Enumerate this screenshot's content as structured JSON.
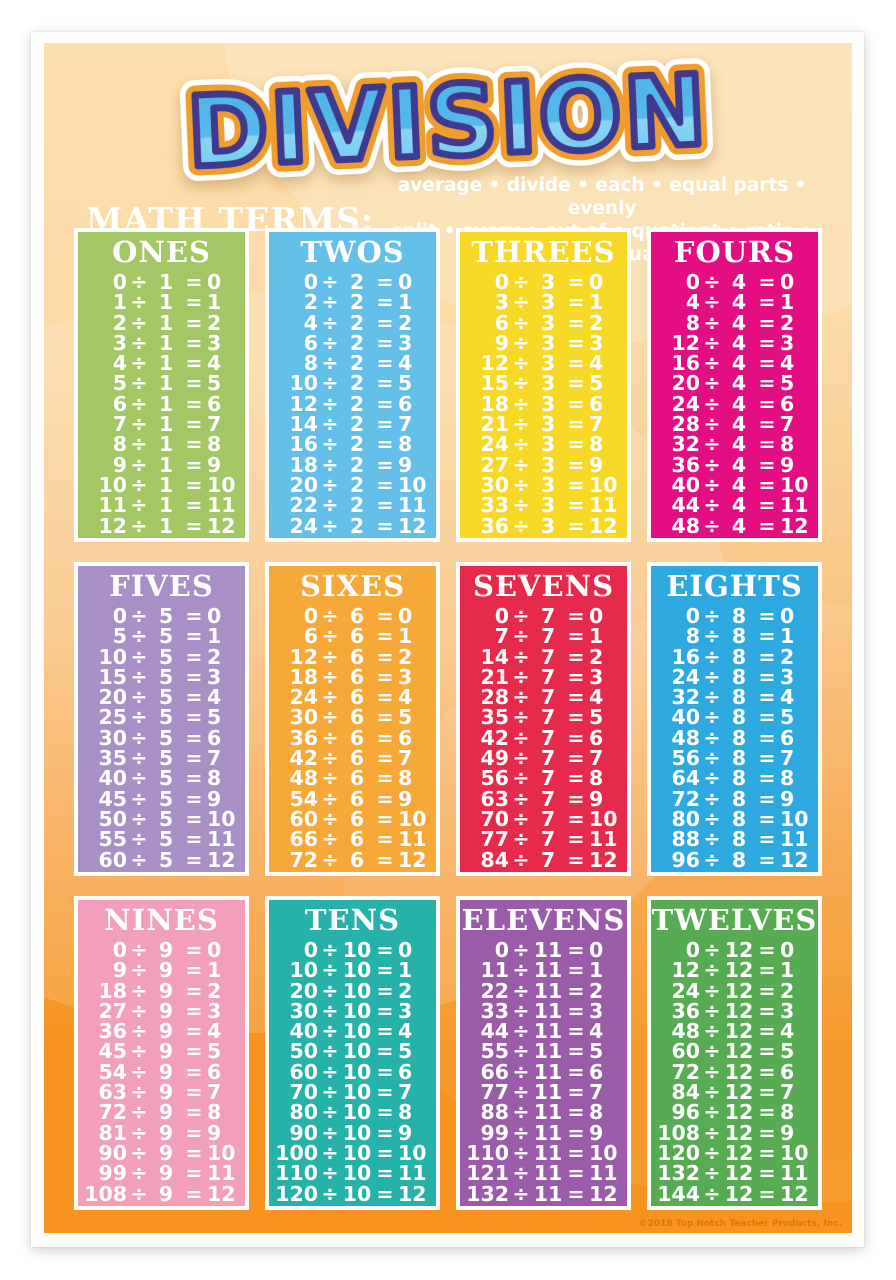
{
  "poster": {
    "title": "DIVISION",
    "math_terms_label": "MATH TERMS:",
    "terms_line1": "average • divide • each • equal parts • evenly",
    "terms_line2": "split • every • out of • quotient • ratio • shared equally",
    "copyright": "©2018 Top Notch Teacher Products, Inc.",
    "symbols": {
      "divide": "÷",
      "equals": "="
    }
  },
  "colors": {
    "poster_top": "#fcdfae",
    "poster_bottom": "#f6931e",
    "title_fill_dark": "#4fb3e6",
    "title_fill_light": "#8bd5f3",
    "title_outline_navy": "#3f3a8f",
    "title_ring_orange": "#f09d2e",
    "title_ring_white": "#ffffff",
    "text_white": "#ffffff"
  },
  "tables": [
    {
      "title": "ONES",
      "color": "#a2c764",
      "rows": [
        [
          0,
          1,
          0
        ],
        [
          1,
          1,
          1
        ],
        [
          2,
          1,
          2
        ],
        [
          3,
          1,
          3
        ],
        [
          4,
          1,
          4
        ],
        [
          5,
          1,
          5
        ],
        [
          6,
          1,
          6
        ],
        [
          7,
          1,
          7
        ],
        [
          8,
          1,
          8
        ],
        [
          9,
          1,
          9
        ],
        [
          10,
          1,
          10
        ],
        [
          11,
          1,
          11
        ],
        [
          12,
          1,
          12
        ]
      ]
    },
    {
      "title": "TWOS",
      "color": "#64c0e8",
      "rows": [
        [
          0,
          2,
          0
        ],
        [
          2,
          2,
          1
        ],
        [
          4,
          2,
          2
        ],
        [
          6,
          2,
          3
        ],
        [
          8,
          2,
          4
        ],
        [
          10,
          2,
          5
        ],
        [
          12,
          2,
          6
        ],
        [
          14,
          2,
          7
        ],
        [
          16,
          2,
          8
        ],
        [
          18,
          2,
          9
        ],
        [
          20,
          2,
          10
        ],
        [
          22,
          2,
          11
        ],
        [
          24,
          2,
          12
        ]
      ]
    },
    {
      "title": "THREES",
      "color": "#f8d826",
      "rows": [
        [
          0,
          3,
          0
        ],
        [
          3,
          3,
          1
        ],
        [
          6,
          3,
          2
        ],
        [
          9,
          3,
          3
        ],
        [
          12,
          3,
          4
        ],
        [
          15,
          3,
          5
        ],
        [
          18,
          3,
          6
        ],
        [
          21,
          3,
          7
        ],
        [
          24,
          3,
          8
        ],
        [
          27,
          3,
          9
        ],
        [
          30,
          3,
          10
        ],
        [
          33,
          3,
          11
        ],
        [
          36,
          3,
          12
        ]
      ]
    },
    {
      "title": "FOURS",
      "color": "#e30f82",
      "rows": [
        [
          0,
          4,
          0
        ],
        [
          4,
          4,
          1
        ],
        [
          8,
          4,
          2
        ],
        [
          12,
          4,
          3
        ],
        [
          16,
          4,
          4
        ],
        [
          20,
          4,
          5
        ],
        [
          24,
          4,
          6
        ],
        [
          28,
          4,
          7
        ],
        [
          32,
          4,
          8
        ],
        [
          36,
          4,
          9
        ],
        [
          40,
          4,
          10
        ],
        [
          44,
          4,
          11
        ],
        [
          48,
          4,
          12
        ]
      ]
    },
    {
      "title": "FIVES",
      "color": "#a88fc6",
      "rows": [
        [
          0,
          5,
          0
        ],
        [
          5,
          5,
          1
        ],
        [
          10,
          5,
          2
        ],
        [
          15,
          5,
          3
        ],
        [
          20,
          5,
          4
        ],
        [
          25,
          5,
          5
        ],
        [
          30,
          5,
          6
        ],
        [
          35,
          5,
          7
        ],
        [
          40,
          5,
          8
        ],
        [
          45,
          5,
          9
        ],
        [
          50,
          5,
          10
        ],
        [
          55,
          5,
          11
        ],
        [
          60,
          5,
          12
        ]
      ]
    },
    {
      "title": "SIXES",
      "color": "#f6a838",
      "rows": [
        [
          0,
          6,
          0
        ],
        [
          6,
          6,
          1
        ],
        [
          12,
          6,
          2
        ],
        [
          18,
          6,
          3
        ],
        [
          24,
          6,
          4
        ],
        [
          30,
          6,
          5
        ],
        [
          36,
          6,
          6
        ],
        [
          42,
          6,
          7
        ],
        [
          48,
          6,
          8
        ],
        [
          54,
          6,
          9
        ],
        [
          60,
          6,
          10
        ],
        [
          66,
          6,
          11
        ],
        [
          72,
          6,
          12
        ]
      ]
    },
    {
      "title": "SEVENS",
      "color": "#e52a4c",
      "rows": [
        [
          0,
          7,
          0
        ],
        [
          7,
          7,
          1
        ],
        [
          14,
          7,
          2
        ],
        [
          21,
          7,
          3
        ],
        [
          28,
          7,
          4
        ],
        [
          35,
          7,
          5
        ],
        [
          42,
          7,
          6
        ],
        [
          49,
          7,
          7
        ],
        [
          56,
          7,
          8
        ],
        [
          63,
          7,
          9
        ],
        [
          70,
          7,
          10
        ],
        [
          77,
          7,
          11
        ],
        [
          84,
          7,
          12
        ]
      ]
    },
    {
      "title": "EIGHTS",
      "color": "#2da9e0",
      "rows": [
        [
          0,
          8,
          0
        ],
        [
          8,
          8,
          1
        ],
        [
          16,
          8,
          2
        ],
        [
          24,
          8,
          3
        ],
        [
          32,
          8,
          4
        ],
        [
          40,
          8,
          5
        ],
        [
          48,
          8,
          6
        ],
        [
          56,
          8,
          7
        ],
        [
          64,
          8,
          8
        ],
        [
          72,
          8,
          9
        ],
        [
          80,
          8,
          10
        ],
        [
          88,
          8,
          11
        ],
        [
          96,
          8,
          12
        ]
      ]
    },
    {
      "title": "NINES",
      "color": "#f29fba",
      "rows": [
        [
          0,
          9,
          0
        ],
        [
          9,
          9,
          1
        ],
        [
          18,
          9,
          2
        ],
        [
          27,
          9,
          3
        ],
        [
          36,
          9,
          4
        ],
        [
          45,
          9,
          5
        ],
        [
          54,
          9,
          6
        ],
        [
          63,
          9,
          7
        ],
        [
          72,
          9,
          8
        ],
        [
          81,
          9,
          9
        ],
        [
          90,
          9,
          10
        ],
        [
          99,
          9,
          11
        ],
        [
          108,
          9,
          12
        ]
      ]
    },
    {
      "title": "TENS",
      "color": "#27b2a9",
      "rows": [
        [
          0,
          10,
          0
        ],
        [
          10,
          10,
          1
        ],
        [
          20,
          10,
          2
        ],
        [
          30,
          10,
          3
        ],
        [
          40,
          10,
          4
        ],
        [
          50,
          10,
          5
        ],
        [
          60,
          10,
          6
        ],
        [
          70,
          10,
          7
        ],
        [
          80,
          10,
          8
        ],
        [
          90,
          10,
          9
        ],
        [
          100,
          10,
          10
        ],
        [
          110,
          10,
          11
        ],
        [
          120,
          10,
          12
        ]
      ]
    },
    {
      "title": "ELEVENS",
      "color": "#9a5ca8",
      "rows": [
        [
          0,
          11,
          0
        ],
        [
          11,
          11,
          1
        ],
        [
          22,
          11,
          2
        ],
        [
          33,
          11,
          3
        ],
        [
          44,
          11,
          4
        ],
        [
          55,
          11,
          5
        ],
        [
          66,
          11,
          6
        ],
        [
          77,
          11,
          7
        ],
        [
          88,
          11,
          8
        ],
        [
          99,
          11,
          9
        ],
        [
          110,
          11,
          10
        ],
        [
          121,
          11,
          11
        ],
        [
          132,
          11,
          12
        ]
      ]
    },
    {
      "title": "TWELVES",
      "color": "#57ab52",
      "rows": [
        [
          0,
          12,
          0
        ],
        [
          12,
          12,
          1
        ],
        [
          24,
          12,
          2
        ],
        [
          36,
          12,
          3
        ],
        [
          48,
          12,
          4
        ],
        [
          60,
          12,
          5
        ],
        [
          72,
          12,
          6
        ],
        [
          84,
          12,
          7
        ],
        [
          96,
          12,
          8
        ],
        [
          108,
          12,
          9
        ],
        [
          120,
          12,
          10
        ],
        [
          132,
          12,
          11
        ],
        [
          144,
          12,
          12
        ]
      ]
    }
  ]
}
